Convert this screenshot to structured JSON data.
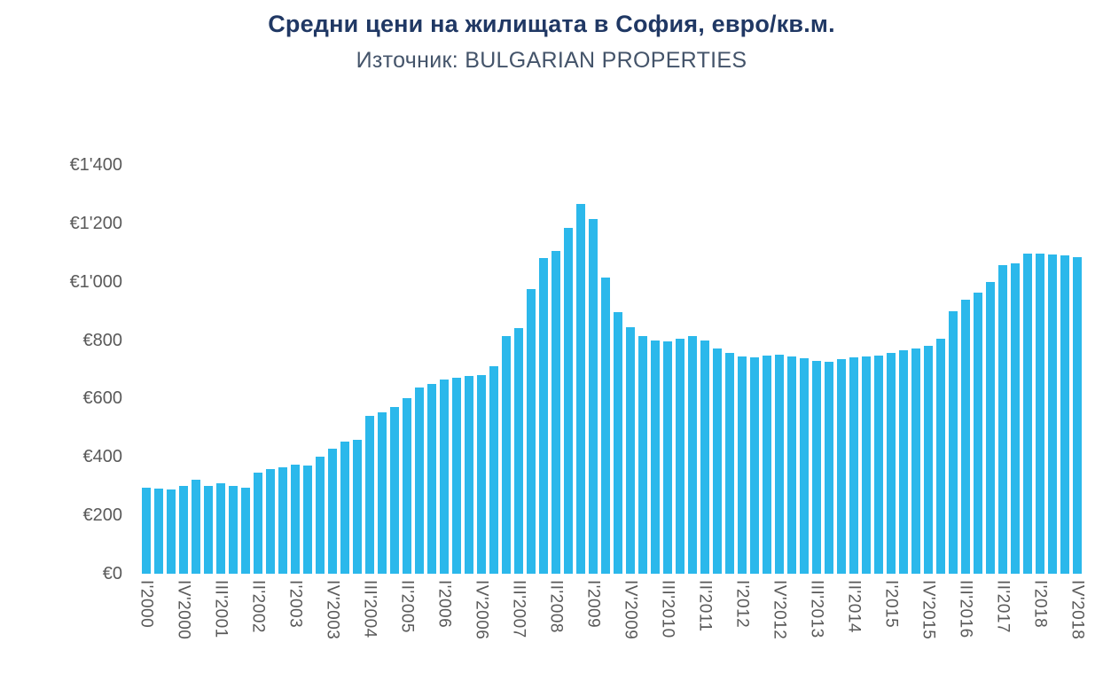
{
  "chart_data": {
    "type": "bar",
    "title": "Средни цени на жилищата в София, евро/кв.м.",
    "subtitle": "Източник: BULGARIAN PROPERTIES",
    "bar_color": "#2BB8EB",
    "grid": false,
    "legend": false,
    "ylim": [
      0,
      1400
    ],
    "ytick_values": [
      0,
      200,
      400,
      600,
      800,
      1000,
      1200,
      1400
    ],
    "ytick_labels": [
      "€0",
      "€200",
      "€400",
      "€600",
      "€800",
      "€1'000",
      "€1'200",
      "€1'400"
    ],
    "x_label_every": 3,
    "categories": [
      "I'2000",
      "II'2000",
      "III'2000",
      "IV'2000",
      "I'2001",
      "II'2001",
      "III'2001",
      "IV'2001",
      "I'2002",
      "II'2002",
      "III'2002",
      "IV'2002",
      "I'2003",
      "II'2003",
      "III'2003",
      "IV'2003",
      "I'2004",
      "II'2004",
      "III'2004",
      "IV'2004",
      "I'2005",
      "II'2005",
      "III'2005",
      "IV'2005",
      "I'2006",
      "II'2006",
      "III'2006",
      "IV'2006",
      "I'2007",
      "II'2007",
      "III'2007",
      "IV'2007",
      "I'2008",
      "II'2008",
      "III'2008",
      "IV'2008",
      "I'2009",
      "II'2009",
      "III'2009",
      "IV'2009",
      "I'2010",
      "II'2010",
      "III'2010",
      "IV'2010",
      "I'2011",
      "II'2011",
      "III'2011",
      "IV'2011",
      "I'2012",
      "II'2012",
      "III'2012",
      "IV'2012",
      "I'2013",
      "II'2013",
      "III'2013",
      "IV'2013",
      "I'2014",
      "II'2014",
      "III'2014",
      "IV'2014",
      "I'2015",
      "II'2015",
      "III'2015",
      "IV'2015",
      "I'2016",
      "II'2016",
      "III'2016",
      "IV'2016",
      "I'2017",
      "II'2017",
      "III'2017",
      "IV'2017",
      "I'2018",
      "II'2018",
      "III'2018",
      "IV'2018"
    ],
    "values": [
      295,
      293,
      290,
      300,
      323,
      301,
      310,
      300,
      296,
      345,
      358,
      363,
      374,
      370,
      400,
      428,
      452,
      458,
      540,
      553,
      570,
      600,
      637,
      650,
      664,
      670,
      677,
      680,
      710,
      814,
      840,
      975,
      1080,
      1105,
      1185,
      1266,
      1215,
      1015,
      895,
      843,
      815,
      800,
      795,
      805,
      813,
      800,
      770,
      755,
      745,
      741,
      746,
      750,
      744,
      737,
      730,
      726,
      735,
      740,
      745,
      748,
      756,
      764,
      772,
      780,
      806,
      900,
      938,
      962,
      1000,
      1058,
      1063,
      1095,
      1097,
      1093,
      1090,
      1085
    ],
    "xlabel": "",
    "ylabel": ""
  }
}
